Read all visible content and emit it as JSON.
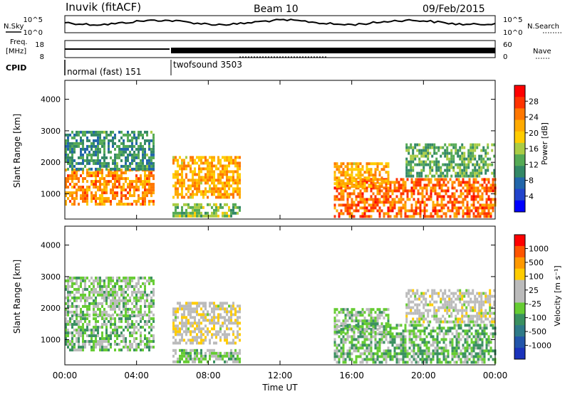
{
  "header": {
    "title": "Inuvik (fitACF)",
    "beam": "Beam 10",
    "date": "09/Feb/2015"
  },
  "top_panels": {
    "nsky_label": "N.Sky",
    "nsearch_label": "N.Search",
    "noise_ticks_left": [
      "10^5",
      "10^0"
    ],
    "noise_ticks_right": [
      "10^5",
      "10^0"
    ],
    "freq_label_line1": "Freq.",
    "freq_label_line2": "[MHz]",
    "freq_ticks": [
      "18",
      "8"
    ],
    "nave_label": "Nave",
    "nave_ticks": [
      "60",
      "0"
    ],
    "cpid_label": "CPID",
    "cpid_entries": [
      {
        "name": "normal (fast) 151",
        "start_hour": 0
      },
      {
        "name": "twofsound 3503",
        "start_hour": 6.0
      }
    ]
  },
  "power_colorbar": {
    "label": "Power [dB]",
    "ticks": [
      "28",
      "24",
      "20",
      "16",
      "12",
      "8",
      "4"
    ],
    "colors": [
      "#0000ff",
      "#2244cc",
      "#2266aa",
      "#338866",
      "#55aa55",
      "#aacc44",
      "#ffcc00",
      "#ffaa00",
      "#ff7700",
      "#ff3300",
      "#ff0000"
    ]
  },
  "velocity_colorbar": {
    "label": "Velocity [m s⁻¹]",
    "ticks": [
      "1000",
      "500",
      "100",
      "25",
      "-25",
      "-100",
      "-500",
      "-1000"
    ],
    "colors": [
      "#1a33bb",
      "#2255aa",
      "#2e7a88",
      "#3a9060",
      "#66cc33",
      "#bbbbbb",
      "#bbbbbb",
      "#ffcc00",
      "#ff9900",
      "#ff5500",
      "#ff0000"
    ]
  },
  "chart_data": [
    {
      "type": "heatmap",
      "panel": "power",
      "ylabel": "Slant Range [km]",
      "yticks": [
        1000,
        2000,
        3000,
        4000
      ],
      "ylim": [
        200,
        4600
      ],
      "xlim": [
        0,
        24
      ],
      "value_range": [
        0,
        30
      ],
      "regions": [
        {
          "t0": 0.0,
          "t1": 5.0,
          "r0": 700,
          "r1": 1800,
          "value": 22
        },
        {
          "t0": 0.0,
          "t1": 5.0,
          "r0": 1800,
          "r1": 3000,
          "value": 10
        },
        {
          "t0": 6.0,
          "t1": 9.8,
          "r0": 900,
          "r1": 2200,
          "value": 20
        },
        {
          "t0": 6.0,
          "t1": 9.8,
          "r0": 250,
          "r1": 700,
          "value": 14
        },
        {
          "t0": 15.0,
          "t1": 24.0,
          "r0": 300,
          "r1": 1500,
          "value": 24
        },
        {
          "t0": 15.0,
          "t1": 18.0,
          "r0": 1200,
          "r1": 2000,
          "value": 20
        },
        {
          "t0": 19.0,
          "t1": 24.0,
          "r0": 1600,
          "r1": 2600,
          "value": 12
        }
      ]
    },
    {
      "type": "heatmap",
      "panel": "velocity",
      "ylabel": "Slant Range [km]",
      "yticks": [
        1000,
        2000,
        3000,
        4000
      ],
      "ylim": [
        200,
        4600
      ],
      "xlim": [
        0,
        24
      ],
      "value_range": [
        -1000,
        1000
      ],
      "regions": [
        {
          "t0": 0.0,
          "t1": 5.0,
          "r0": 700,
          "r1": 1800,
          "value": -150
        },
        {
          "t0": 0.0,
          "t1": 5.0,
          "r0": 1800,
          "r1": 3000,
          "value": -100
        },
        {
          "t0": 6.0,
          "t1": 9.8,
          "r0": 900,
          "r1": 2200,
          "value": 150
        },
        {
          "t0": 6.0,
          "t1": 9.8,
          "r0": 250,
          "r1": 700,
          "value": -100
        },
        {
          "t0": 15.0,
          "t1": 24.0,
          "r0": 300,
          "r1": 1500,
          "value": -200
        },
        {
          "t0": 15.0,
          "t1": 18.0,
          "r0": 1200,
          "r1": 2000,
          "value": -120
        },
        {
          "t0": 19.0,
          "t1": 24.0,
          "r0": 1600,
          "r1": 2600,
          "value": 100
        }
      ]
    }
  ],
  "xaxis": {
    "label": "Time UT",
    "ticks": [
      "00:00",
      "04:00",
      "08:00",
      "12:00",
      "16:00",
      "20:00",
      "00:00"
    ]
  }
}
